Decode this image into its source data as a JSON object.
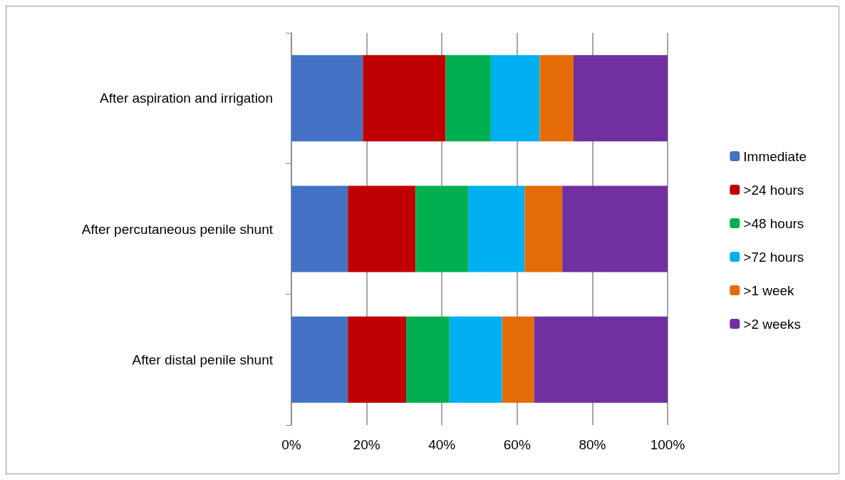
{
  "chart_data": {
    "type": "bar",
    "orientation": "horizontal",
    "stacked": true,
    "categories": [
      "After aspiration and irrigation",
      "After percutaneous penile shunt",
      "After distal penile shunt"
    ],
    "series": [
      {
        "name": "Immediate",
        "color": "#4472c4",
        "values": [
          19,
          15,
          15
        ]
      },
      {
        "name": ">24 hours",
        "color": "#c00000",
        "values": [
          22,
          18,
          15.5
        ]
      },
      {
        "name": ">48 hours",
        "color": "#00b050",
        "values": [
          12,
          14,
          11.5
        ]
      },
      {
        "name": ">72 hours",
        "color": "#00b0f0",
        "values": [
          13,
          15,
          14
        ]
      },
      {
        "name": ">1 week",
        "color": "#e36c09",
        "values": [
          9,
          10,
          8.5
        ]
      },
      {
        "name": ">2 weeks",
        "color": "#7030a0",
        "values": [
          25,
          28,
          35.5
        ]
      }
    ],
    "xlim": [
      0,
      100
    ],
    "xticks": [
      {
        "value": 0,
        "label": "0%"
      },
      {
        "value": 20,
        "label": "20%"
      },
      {
        "value": 40,
        "label": "40%"
      },
      {
        "value": 60,
        "label": "60%"
      },
      {
        "value": 80,
        "label": "80%"
      },
      {
        "value": 100,
        "label": "100%"
      }
    ],
    "grid": "x",
    "legend": "right"
  }
}
